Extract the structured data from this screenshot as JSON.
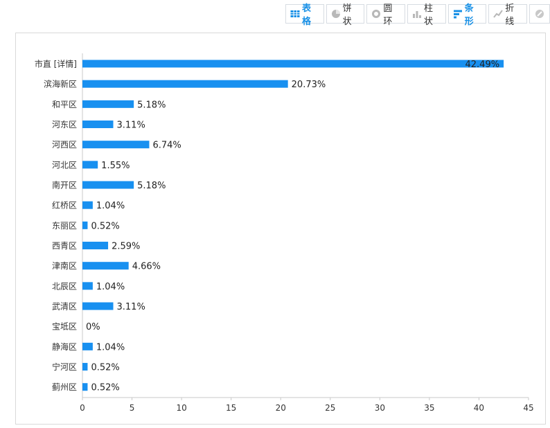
{
  "toolbar": {
    "buttons": [
      {
        "id": "table",
        "label": "表格",
        "icon": "table-icon",
        "active": true
      },
      {
        "id": "pie",
        "label": "饼状",
        "icon": "pie-chart-icon",
        "active": false
      },
      {
        "id": "ring",
        "label": "圆环",
        "icon": "donut-chart-icon",
        "active": false
      },
      {
        "id": "column",
        "label": "柱状",
        "icon": "column-chart-icon",
        "active": false
      },
      {
        "id": "bar",
        "label": "条形",
        "icon": "bar-chart-icon",
        "active": true
      },
      {
        "id": "line",
        "label": "折线",
        "icon": "line-chart-icon",
        "active": false
      },
      {
        "id": "clear",
        "label": "",
        "icon": "disable-icon",
        "active": false
      }
    ],
    "accent_color": "#1890e6"
  },
  "chart_data": {
    "type": "bar",
    "orientation": "horizontal",
    "categories": [
      "市直 [详情]",
      "滨海新区",
      "和平区",
      "河东区",
      "河西区",
      "河北区",
      "南开区",
      "红桥区",
      "东丽区",
      "西青区",
      "津南区",
      "北辰区",
      "武清区",
      "宝坻区",
      "静海区",
      "宁河区",
      "蓟州区"
    ],
    "values": [
      42.49,
      20.73,
      5.18,
      3.11,
      6.74,
      1.55,
      5.18,
      1.04,
      0.52,
      2.59,
      4.66,
      1.04,
      3.11,
      0,
      1.04,
      0.52,
      0.52
    ],
    "labels": [
      "42.49%",
      "20.73%",
      "5.18%",
      "3.11%",
      "6.74%",
      "1.55%",
      "5.18%",
      "1.04%",
      "0.52%",
      "2.59%",
      "4.66%",
      "1.04%",
      "3.11%",
      "0%",
      "1.04%",
      "0.52%",
      "0.52%"
    ],
    "xlim": [
      0,
      45
    ],
    "xticks": [
      "0",
      "5",
      "10",
      "15",
      "20",
      "25",
      "30",
      "35",
      "40",
      "45"
    ],
    "bar_color": "#1890f0",
    "grid": false
  }
}
